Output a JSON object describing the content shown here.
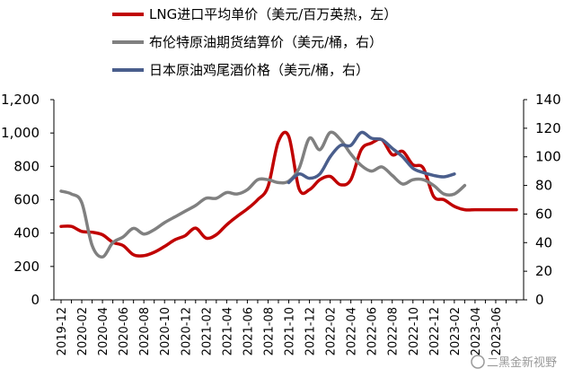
{
  "chart_data": {
    "type": "line",
    "title": "",
    "x_labels": [
      "2019-12",
      "2020-02",
      "2020-04",
      "2020-06",
      "2020-08",
      "2020-10",
      "2020-12",
      "2021-02",
      "2021-04",
      "2021-06",
      "2021-08",
      "2021-10",
      "2021-12",
      "2022-02",
      "2022-04",
      "2022-06",
      "2022-08",
      "2022-10",
      "2022-12",
      "2023-02",
      "2023-04",
      "2023-06"
    ],
    "left_axis": {
      "ylim": [
        0,
        1200
      ],
      "ticks": [
        "0",
        "200",
        "400",
        "600",
        "800",
        "1,000",
        "1,200"
      ],
      "tick_values": [
        0,
        200,
        400,
        600,
        800,
        1000,
        1200
      ]
    },
    "right_axis": {
      "ylim": [
        0,
        140
      ],
      "ticks": [
        "0",
        "20",
        "40",
        "60",
        "80",
        "100",
        "120",
        "140"
      ],
      "tick_values": [
        0,
        20,
        40,
        60,
        80,
        100,
        120,
        140
      ]
    },
    "series": [
      {
        "name": "LNG进口平均单价（美元/百万英热，左）",
        "color": "#c00000",
        "axis": "left",
        "x": [
          0,
          1,
          2,
          3,
          4,
          5,
          6,
          7,
          8,
          9,
          10,
          11,
          12,
          13,
          14,
          15,
          16,
          17,
          18,
          19,
          20,
          21,
          22,
          23,
          24,
          25,
          26,
          27,
          28,
          29,
          30,
          31,
          32,
          33,
          34,
          35,
          36,
          37,
          38,
          39,
          40,
          41,
          42,
          43,
          44
        ],
        "values": [
          440,
          440,
          410,
          405,
          390,
          345,
          325,
          270,
          265,
          285,
          320,
          360,
          385,
          430,
          370,
          390,
          450,
          500,
          545,
          600,
          680,
          950,
          980,
          665,
          660,
          720,
          740,
          690,
          720,
          900,
          940,
          960,
          870,
          890,
          810,
          790,
          620,
          600,
          560,
          540,
          540,
          540,
          540,
          540,
          540
        ]
      },
      {
        "name": "布伦特原油期货结算价（美元/桶，右）",
        "color": "#808080",
        "axis": "right",
        "x": [
          0,
          1,
          2,
          3,
          4,
          5,
          6,
          7,
          8,
          9,
          10,
          11,
          12,
          13,
          14,
          15,
          16,
          17,
          18,
          19,
          20,
          21,
          22,
          23,
          24,
          25,
          26,
          27,
          28,
          29,
          30,
          31,
          32,
          33,
          34,
          35,
          36,
          37,
          38,
          39
        ],
        "values": [
          76,
          74,
          68,
          38,
          30,
          40,
          44,
          50,
          46,
          49,
          54,
          58,
          62,
          66,
          71,
          71,
          75,
          74,
          77,
          84,
          84,
          82,
          83,
          92,
          113,
          105,
          117,
          112,
          102,
          94,
          90,
          93,
          87,
          81,
          84,
          84,
          80,
          74,
          74,
          80
        ]
      },
      {
        "name": "日本原油鸡尾酒价格（美元/桶，右）",
        "color": "#4a5e8c",
        "axis": "right",
        "x": [
          22,
          23,
          24,
          25,
          26,
          27,
          28,
          29,
          30,
          31,
          32,
          33,
          34,
          35,
          36,
          37,
          38
        ],
        "values": [
          82,
          88,
          85,
          88,
          100,
          108,
          108,
          117,
          113,
          112,
          106,
          100,
          92,
          89,
          87,
          86,
          88
        ]
      }
    ],
    "legend_position": "top",
    "gridlines": false
  },
  "watermark": {
    "text": "二黑金新视野"
  }
}
